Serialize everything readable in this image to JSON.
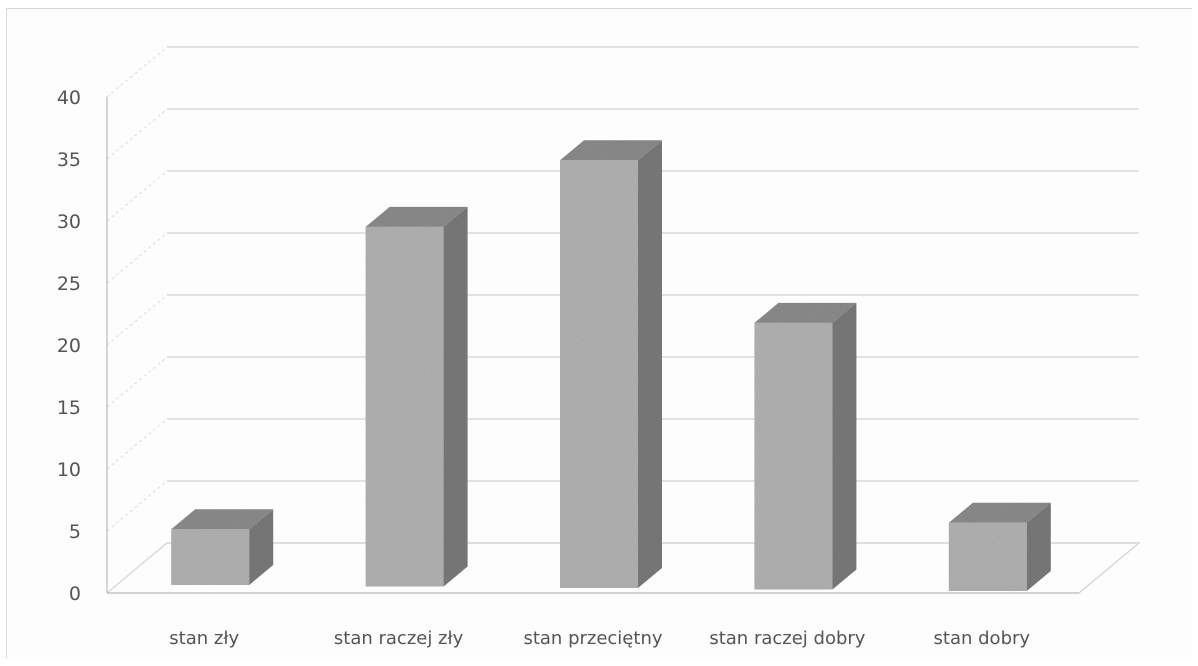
{
  "chart_data": {
    "type": "bar",
    "style": "3d-column",
    "categories": [
      "stan zły",
      "stan raczej zły",
      "stan przeciętny",
      "stan raczej dobry",
      "stan dobry"
    ],
    "values": [
      4.5,
      29,
      34.5,
      21.5,
      5.5
    ],
    "ylim": [
      0,
      40
    ],
    "y_ticks": [
      "0",
      "5",
      "10",
      "15",
      "20",
      "25",
      "30",
      "35",
      "40"
    ],
    "title": "",
    "xlabel": "",
    "ylabel": "",
    "grid": true,
    "legend": "none",
    "colors": {
      "bar_front": "#b3b3b3",
      "bar_top": "#8c8c8c",
      "bar_side": "#7a7a7a",
      "grid": "#d2d2d2",
      "text": "#555555"
    }
  }
}
